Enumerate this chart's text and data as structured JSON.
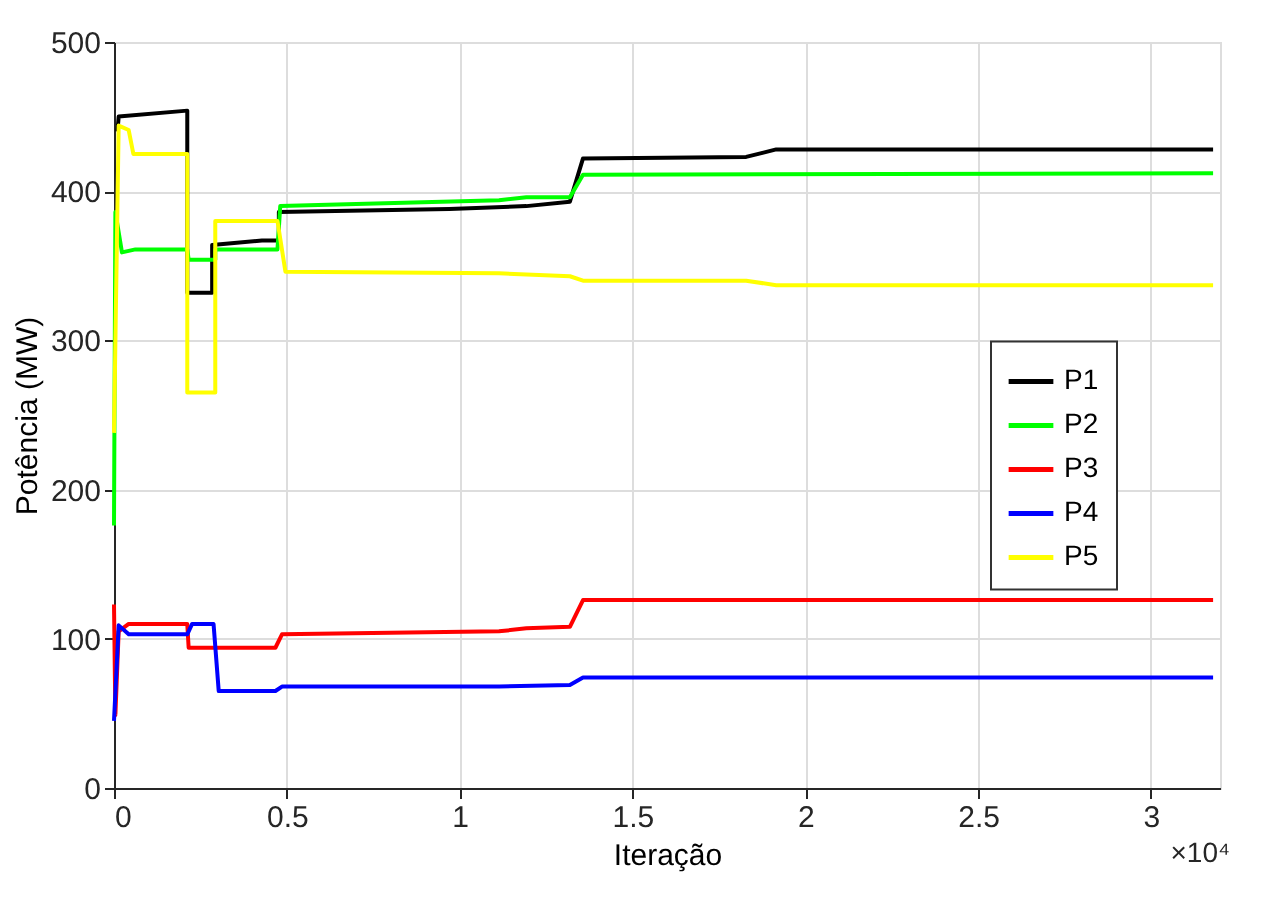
{
  "chart_data": {
    "type": "line",
    "xlabel": "Iteração",
    "ylabel": "Potência (MW)",
    "xlim": [
      0,
      3.2
    ],
    "ylim": [
      0,
      500
    ],
    "xticks": [
      0,
      0.5,
      1,
      1.5,
      2,
      2.5,
      3
    ],
    "yticks": [
      0,
      100,
      200,
      300,
      400,
      500
    ],
    "grid": true,
    "legend": "right",
    "line_style": "solid",
    "marker": "none",
    "annotations": [
      "×10⁴"
    ],
    "series": [
      {
        "name": "P1",
        "color": "#000000",
        "x": [
          0.01,
          0.0135,
          0.212,
          0.212,
          0.284,
          0.284,
          0.428,
          0.477,
          0.477,
          0.97,
          1.193,
          1.319,
          1.357,
          1.829,
          1.916,
          3.18
        ],
        "values": [
          440,
          450,
          454,
          332,
          332,
          364,
          367,
          367,
          386,
          388,
          390,
          393,
          422,
          423,
          428,
          428
        ]
      },
      {
        "name": "P2",
        "color": "#00ff00",
        "x": [
          0,
          0.004,
          0.023,
          0.062,
          0.212,
          0.216,
          0.293,
          0.293,
          0.473,
          0.481,
          1.114,
          1.193,
          1.319,
          1.357,
          3.18
        ],
        "values": [
          176,
          386,
          359,
          361,
          361,
          354,
          354,
          361,
          361,
          390,
          394,
          396,
          396,
          411,
          412
        ]
      },
      {
        "name": "P3",
        "color": "#ff0000",
        "x": [
          0,
          0.004,
          0.0135,
          0.0425,
          0.212,
          0.216,
          0.467,
          0.486,
          1.114,
          1.193,
          1.319,
          1.357,
          3.18
        ],
        "values": [
          123,
          49,
          105,
          110,
          110,
          94,
          94,
          103,
          105,
          107,
          108,
          126,
          126
        ]
      },
      {
        "name": "P4",
        "color": "#0000ff",
        "x": [
          0,
          0.0135,
          0.0425,
          0.212,
          0.226,
          0.288,
          0.303,
          0.467,
          0.486,
          1.114,
          1.319,
          1.357,
          3.18
        ],
        "values": [
          45,
          109,
          103,
          103,
          110,
          110,
          65,
          65,
          68,
          68,
          69,
          74,
          74
        ]
      },
      {
        "name": "P5",
        "color": "#ffff00",
        "x": [
          0,
          0.0135,
          0.0425,
          0.056,
          0.212,
          0.212,
          0.293,
          0.293,
          0.473,
          0.496,
          1.114,
          1.319,
          1.357,
          1.829,
          1.916,
          3.18
        ],
        "values": [
          238,
          444,
          441,
          425,
          425,
          265,
          265,
          380,
          380,
          346,
          345,
          343,
          340,
          340,
          337,
          337
        ]
      }
    ]
  }
}
